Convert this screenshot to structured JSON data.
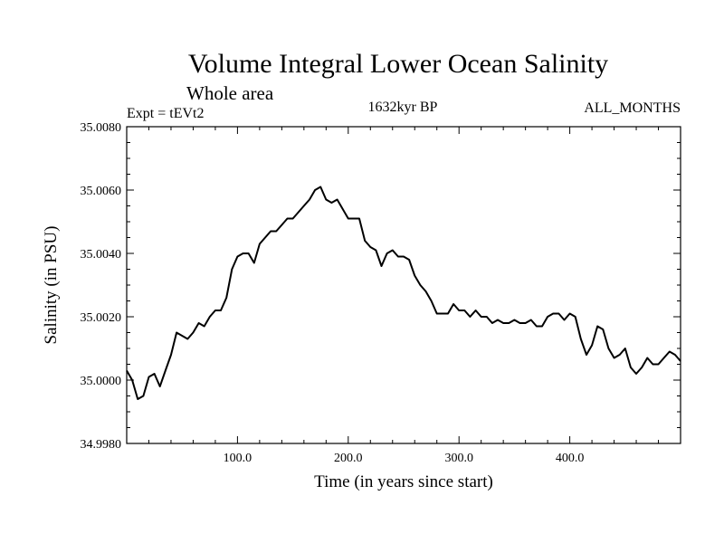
{
  "chart_data": {
    "type": "line",
    "title": "Volume Integral Lower Ocean Salinity",
    "subtitle": "Whole area",
    "left_label": "Expt = tEVt2",
    "center_label": "1632kyr BP",
    "right_label": "ALL_MONTHS",
    "xlabel": "Time (in years since start)",
    "ylabel": "Salinity (in PSU)",
    "xlim": [
      0,
      500
    ],
    "ylim": [
      34.998,
      35.008
    ],
    "x_ticks": [
      100,
      200,
      300,
      400
    ],
    "x_tick_labels": [
      "100.0",
      "200.0",
      "300.0",
      "400.0"
    ],
    "y_ticks": [
      34.998,
      35.0,
      35.002,
      35.004,
      35.006,
      35.008
    ],
    "y_tick_labels": [
      "34.9980",
      "35.0000",
      "35.0020",
      "35.0040",
      "35.0060",
      "35.0080"
    ],
    "series": [
      {
        "name": "Salinity",
        "x": [
          0,
          5,
          10,
          15,
          20,
          25,
          30,
          35,
          40,
          45,
          50,
          55,
          60,
          65,
          70,
          75,
          80,
          85,
          90,
          95,
          100,
          105,
          110,
          115,
          120,
          125,
          130,
          135,
          140,
          145,
          150,
          155,
          160,
          165,
          170,
          175,
          180,
          185,
          190,
          195,
          200,
          205,
          210,
          215,
          220,
          225,
          230,
          235,
          240,
          245,
          250,
          255,
          260,
          265,
          270,
          275,
          280,
          285,
          290,
          295,
          300,
          305,
          310,
          315,
          320,
          325,
          330,
          335,
          340,
          345,
          350,
          355,
          360,
          365,
          370,
          375,
          380,
          385,
          390,
          395,
          400,
          405,
          410,
          415,
          420,
          425,
          430,
          435,
          440,
          445,
          450,
          455,
          460,
          465,
          470,
          475,
          480,
          485,
          490,
          495,
          500
        ],
        "values": [
          35.0003,
          35.0,
          34.9994,
          34.9995,
          35.0001,
          35.0002,
          34.9998,
          35.0003,
          35.0008,
          35.0015,
          35.0014,
          35.0013,
          35.0015,
          35.0018,
          35.0017,
          35.002,
          35.0022,
          35.0022,
          35.0026,
          35.0035,
          35.0039,
          35.004,
          35.004,
          35.0037,
          35.0043,
          35.0045,
          35.0047,
          35.0047,
          35.0049,
          35.0051,
          35.0051,
          35.0053,
          35.0055,
          35.0057,
          35.006,
          35.0061,
          35.0057,
          35.0056,
          35.0057,
          35.0054,
          35.0051,
          35.0051,
          35.0051,
          35.0044,
          35.0042,
          35.0041,
          35.0036,
          35.004,
          35.0041,
          35.0039,
          35.0039,
          35.0038,
          35.0033,
          35.003,
          35.0028,
          35.0025,
          35.0021,
          35.0021,
          35.0021,
          35.0024,
          35.0022,
          35.0022,
          35.002,
          35.0022,
          35.002,
          35.002,
          35.0018,
          35.0019,
          35.0018,
          35.0018,
          35.0019,
          35.0018,
          35.0018,
          35.0019,
          35.0017,
          35.0017,
          35.002,
          35.0021,
          35.0021,
          35.0019,
          35.0021,
          35.002,
          35.0013,
          35.0008,
          35.0011,
          35.0017,
          35.0016,
          35.001,
          35.0007,
          35.0008,
          35.001,
          35.0004,
          35.0002,
          35.0004,
          35.0007,
          35.0005,
          35.0005,
          35.0007,
          35.0009,
          35.0008,
          35.0006
        ]
      }
    ]
  }
}
